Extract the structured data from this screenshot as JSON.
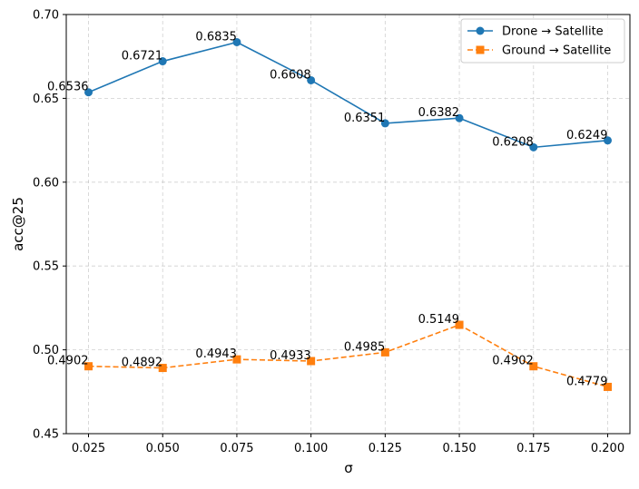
{
  "chart_data": {
    "type": "line",
    "title": "",
    "xlabel": "σ",
    "ylabel": "acc@25",
    "x": [
      0.025,
      0.05,
      0.075,
      0.1,
      0.125,
      0.15,
      0.175,
      0.2
    ],
    "x_tick_labels": [
      "0.025",
      "0.050",
      "0.075",
      "0.100",
      "0.125",
      "0.150",
      "0.175",
      "0.200"
    ],
    "xlim": [
      0.0175,
      0.2075
    ],
    "ylim": [
      0.45,
      0.7
    ],
    "y_ticks": [
      0.45,
      0.5,
      0.55,
      0.6,
      0.65,
      0.7
    ],
    "y_tick_labels": [
      "0.45",
      "0.50",
      "0.55",
      "0.60",
      "0.65",
      "0.70"
    ],
    "grid": true,
    "legend_position": "top-right",
    "series": [
      {
        "name": "Drone → Satellite",
        "color": "#1f77b4",
        "marker": "circle",
        "linestyle": "solid",
        "values": [
          0.6536,
          0.6721,
          0.6835,
          0.6608,
          0.6351,
          0.6382,
          0.6208,
          0.6249
        ],
        "labels": [
          "0.6536",
          "0.6721",
          "0.6835",
          "0.6608",
          "0.6351",
          "0.6382",
          "0.6208",
          "0.6249"
        ]
      },
      {
        "name": "Ground → Satellite",
        "color": "#ff7f0e",
        "marker": "square",
        "linestyle": "dashed",
        "values": [
          0.4902,
          0.4892,
          0.4943,
          0.4933,
          0.4985,
          0.5149,
          0.4902,
          0.4779
        ],
        "labels": [
          "0.4902",
          "0.4892",
          "0.4943",
          "0.4933",
          "0.4985",
          "0.5149",
          "0.4902",
          "0.4779"
        ]
      }
    ]
  }
}
